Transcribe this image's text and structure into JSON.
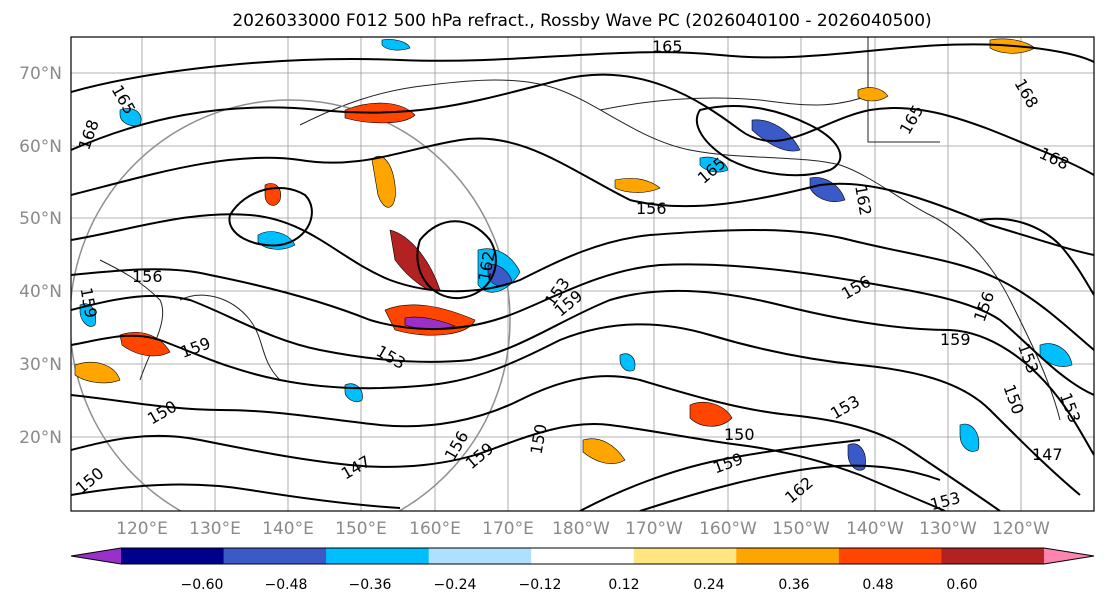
{
  "title": "2026033000 F012 500 hPa refract., Rossby Wave PC (2026040100 - 2026040500)",
  "lat_labels": [
    "70°N",
    "60°N",
    "50°N",
    "40°N",
    "30°N",
    "20°N"
  ],
  "lon_labels": [
    "120°E",
    "130°E",
    "140°E",
    "150°E",
    "160°E",
    "170°E",
    "180°W",
    "170°W",
    "160°W",
    "150°W",
    "140°W",
    "130°W",
    "120°W"
  ],
  "colorbar": {
    "colors": [
      "#9b30c8",
      "#00008b",
      "#3a5bc7",
      "#00bfff",
      "#b0e0ff",
      "#ffffff",
      "#ffe680",
      "#ffa500",
      "#ff4500",
      "#b22222",
      "#ff85b0"
    ],
    "tick_labels": [
      "−0.60",
      "−0.48",
      "−0.36",
      "−0.24",
      "−0.12",
      "0.12",
      "0.24",
      "0.36",
      "0.48",
      "0.60"
    ]
  },
  "contour_labels": [
    "165",
    "168",
    "165",
    "165",
    "165",
    "168",
    "168",
    "162",
    "159",
    "156",
    "156",
    "153",
    "159",
    "153",
    "156",
    "156",
    "159",
    "153",
    "150",
    "147",
    "150",
    "153",
    "159",
    "159",
    "156",
    "150",
    "150",
    "159",
    "162",
    "153",
    "147",
    "153",
    "162",
    "150"
  ]
}
